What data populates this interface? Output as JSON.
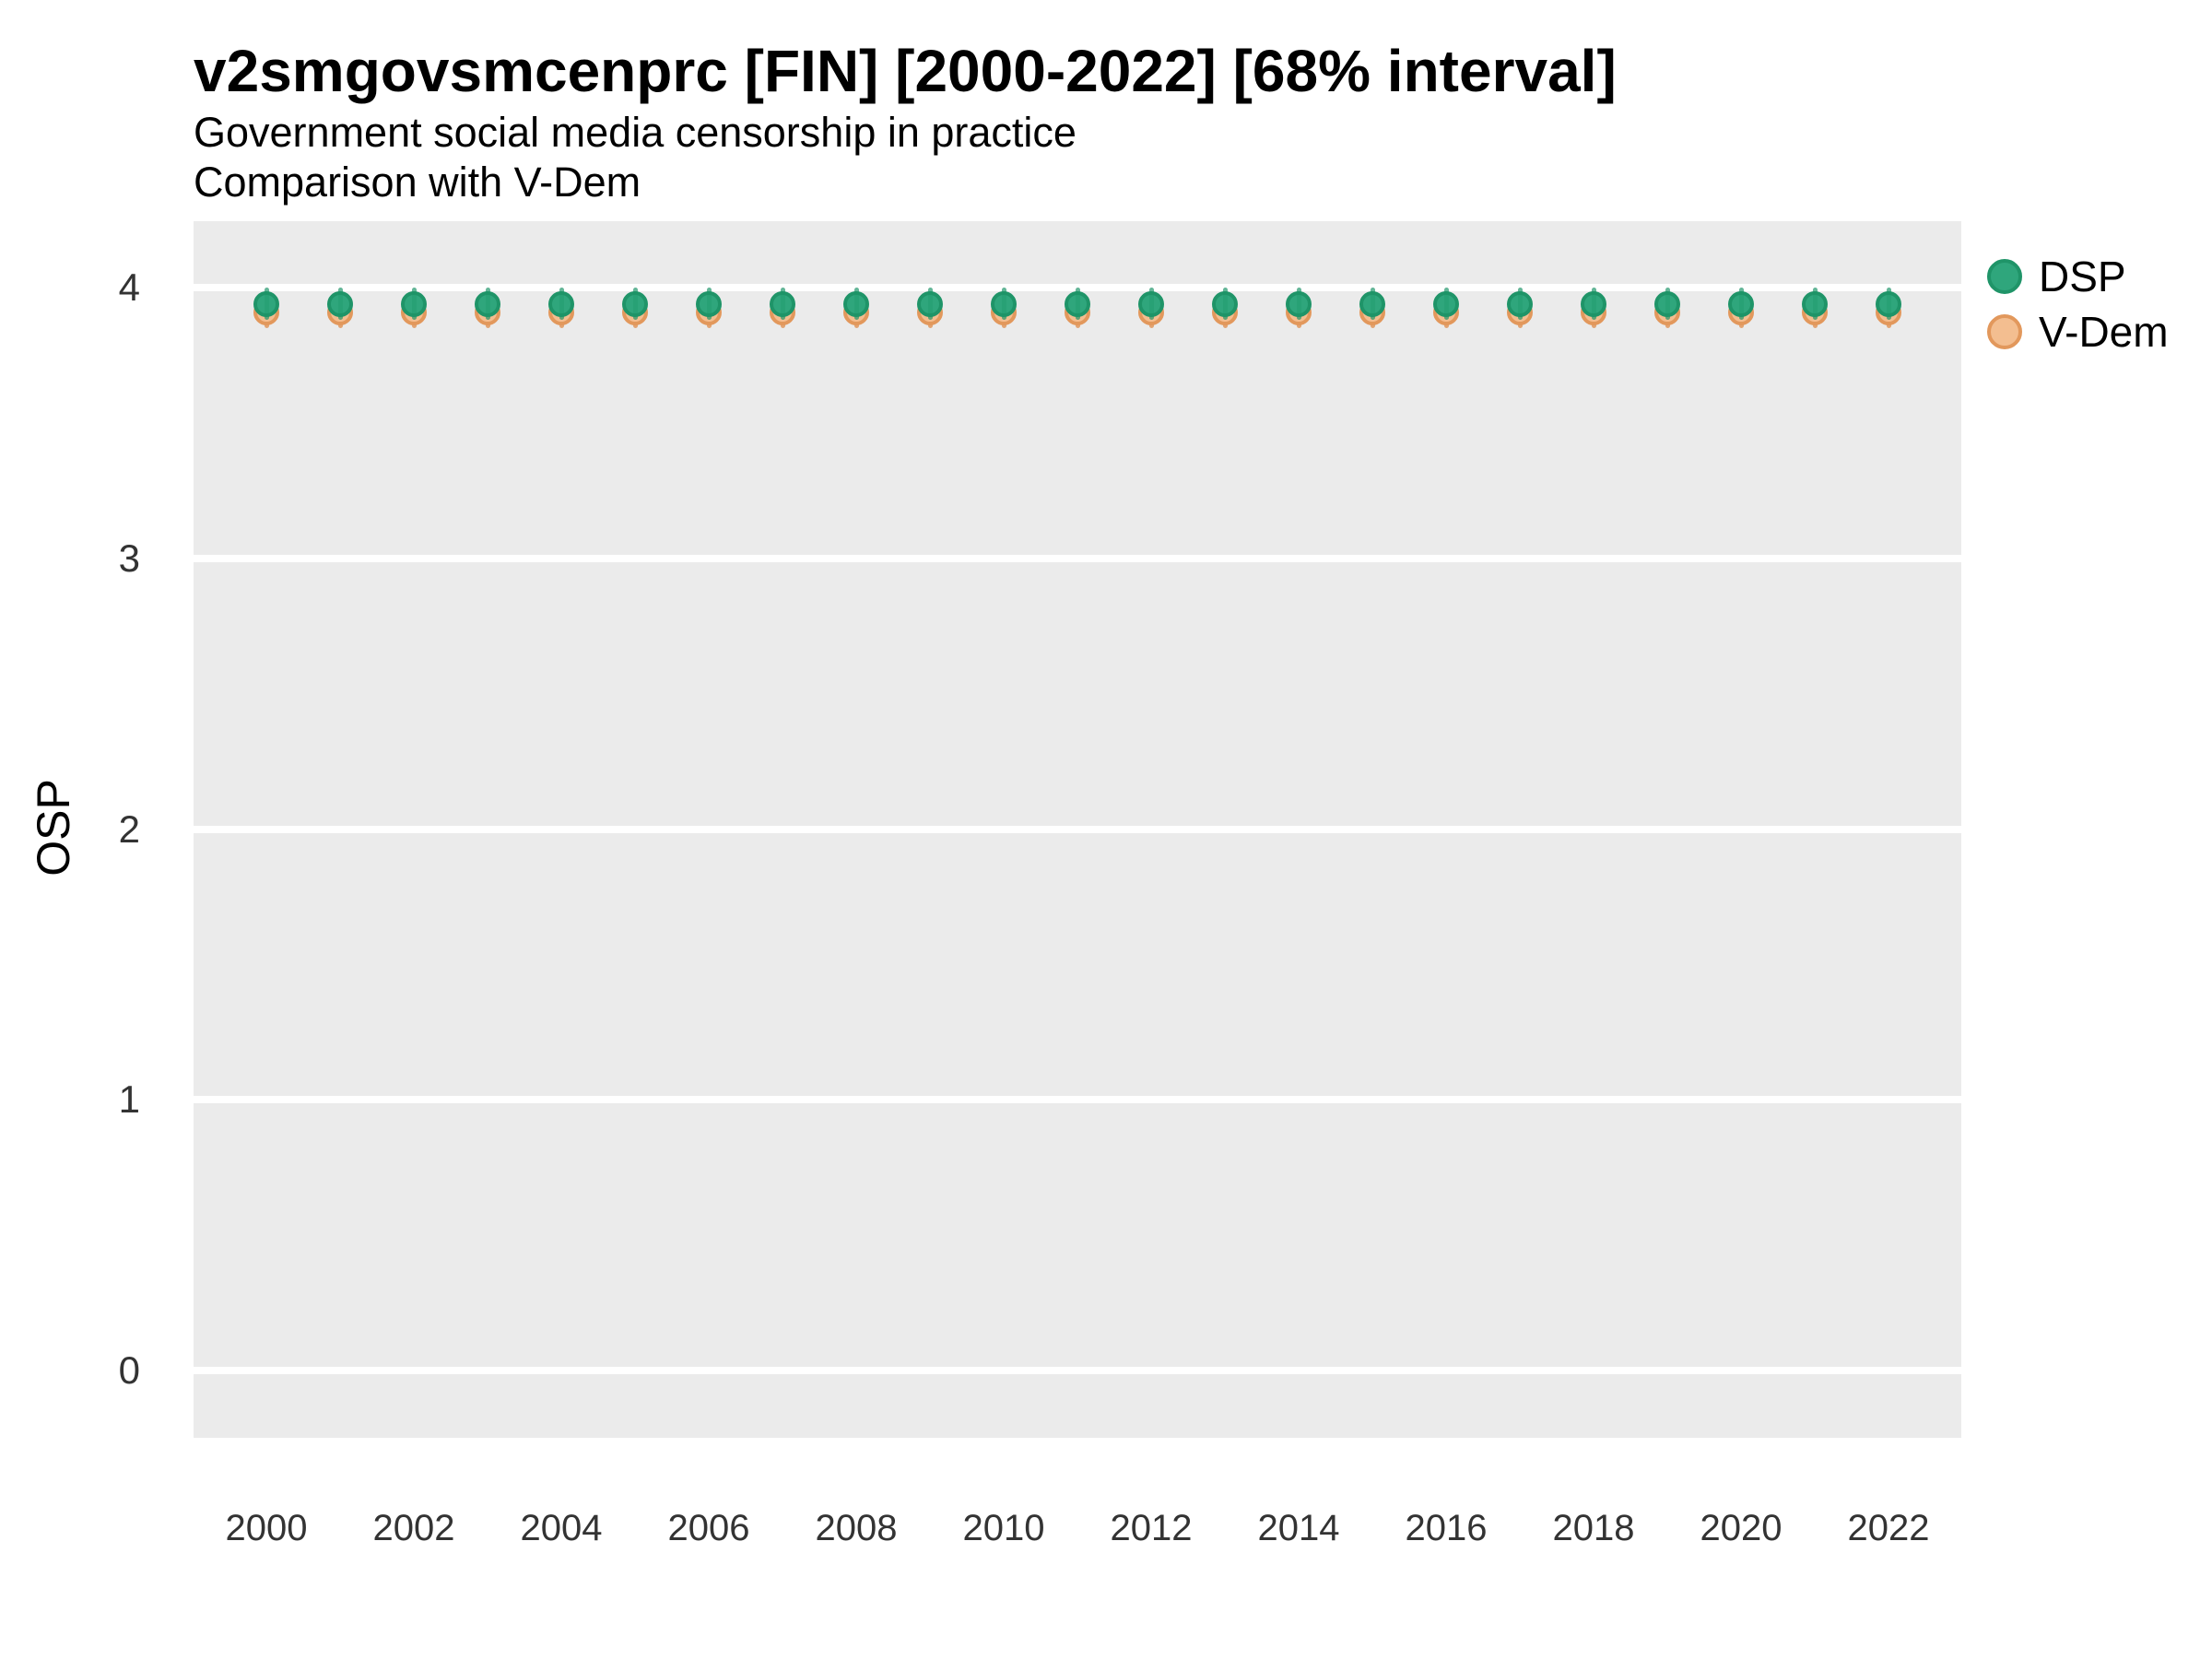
{
  "header": {
    "title": "v2smgovsmcenprc [FIN] [2000-2022] [68% interval]",
    "subtitle1": "Government social media censorship in practice",
    "subtitle2": "Comparison with V-Dem"
  },
  "legend": {
    "position": "top-right",
    "items": [
      {
        "label": "DSP",
        "fill": "#2FA67C",
        "stroke": "#1F9468"
      },
      {
        "label": "V-Dem",
        "fill": "#F3BE90",
        "stroke": "#E2985C"
      }
    ]
  },
  "colors": {
    "panel_background": "#EBEBEB",
    "gridline": "#FFFFFF",
    "title_text": "#000000",
    "axis_text": "#333333",
    "dsp_fill": "#2FA67C",
    "dsp_stroke": "#1F9468",
    "dsp_interval_line": "rgba(31,148,104,0.55)",
    "dsp_interval_overlay": "rgba(27,148,104,0.30)",
    "vdem_fill": "#F3BE90",
    "vdem_stroke": "#E2985C",
    "vdem_interval_line": "rgba(224,151,92,0.85)"
  },
  "chart_data": {
    "type": "scatter",
    "subtype": "pointrange",
    "title": "v2smgovsmcenprc [FIN] [2000-2022] [68% interval]",
    "subtitle": "Government social media censorship in practice",
    "subtitle2": "Comparison with V-Dem",
    "interval": "68%",
    "xlabel": "",
    "ylabel": "OSP",
    "x": [
      2000,
      2001,
      2002,
      2003,
      2004,
      2005,
      2006,
      2007,
      2008,
      2009,
      2010,
      2011,
      2012,
      2013,
      2014,
      2015,
      2016,
      2017,
      2018,
      2019,
      2020,
      2021,
      2022
    ],
    "xticks": [
      2000,
      2002,
      2004,
      2006,
      2008,
      2010,
      2012,
      2014,
      2016,
      2018,
      2020,
      2022
    ],
    "yticks": [
      0,
      1,
      2,
      3,
      4
    ],
    "ylim": [
      -0.25,
      4.25
    ],
    "grid": "horizontal major gridlines only, white on gray panel",
    "legend_position": "top-right",
    "series": [
      {
        "name": "DSP",
        "estimate": [
          3.94,
          3.94,
          3.94,
          3.94,
          3.94,
          3.94,
          3.94,
          3.94,
          3.94,
          3.94,
          3.94,
          3.94,
          3.94,
          3.94,
          3.94,
          3.94,
          3.94,
          3.94,
          3.94,
          3.94,
          3.94,
          3.94,
          3.94
        ],
        "low": [
          3.88,
          3.88,
          3.88,
          3.88,
          3.88,
          3.88,
          3.88,
          3.88,
          3.88,
          3.88,
          3.88,
          3.88,
          3.88,
          3.88,
          3.88,
          3.88,
          3.88,
          3.88,
          3.88,
          3.88,
          3.88,
          3.88,
          3.88
        ],
        "high": [
          4.0,
          4.0,
          4.0,
          4.0,
          4.0,
          4.0,
          4.0,
          4.0,
          4.0,
          4.0,
          4.0,
          4.0,
          4.0,
          4.0,
          4.0,
          4.0,
          4.0,
          4.0,
          4.0,
          4.0,
          4.0,
          4.0,
          4.0
        ]
      },
      {
        "name": "V-Dem",
        "estimate": [
          3.91,
          3.91,
          3.91,
          3.91,
          3.91,
          3.91,
          3.91,
          3.91,
          3.91,
          3.91,
          3.91,
          3.91,
          3.91,
          3.91,
          3.91,
          3.91,
          3.91,
          3.91,
          3.91,
          3.91,
          3.91,
          3.91,
          3.91
        ],
        "low": [
          3.85,
          3.85,
          3.85,
          3.85,
          3.85,
          3.85,
          3.85,
          3.85,
          3.85,
          3.85,
          3.85,
          3.85,
          3.85,
          3.85,
          3.85,
          3.85,
          3.85,
          3.85,
          3.85,
          3.85,
          3.85,
          3.85,
          3.85
        ],
        "high": [
          3.97,
          3.97,
          3.97,
          3.97,
          3.97,
          3.97,
          3.97,
          3.97,
          3.97,
          3.97,
          3.97,
          3.97,
          3.97,
          3.97,
          3.97,
          3.97,
          3.97,
          3.97,
          3.97,
          3.97,
          3.97,
          3.97,
          3.97
        ]
      }
    ]
  }
}
